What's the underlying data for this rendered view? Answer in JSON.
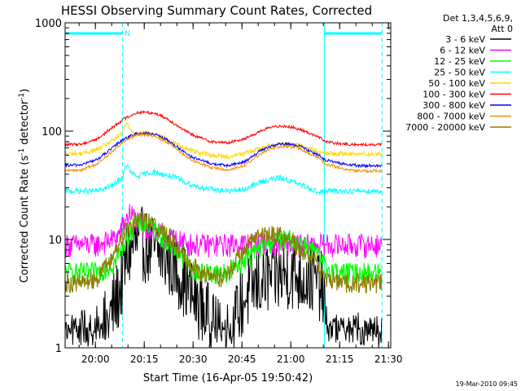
{
  "chart_data": {
    "type": "line",
    "title": "HESSI Observing Summary Count Rates, Corrected",
    "xlabel": "Start Time (16-Apr-05 19:50:42)",
    "ylabel_main": "Corrected Count Rate (s",
    "ylabel_sup1": "-1",
    "ylabel_mid": " detector",
    "ylabel_sup2": "-1",
    "ylabel_end": ")",
    "y_scale": "log",
    "ylim": [
      1,
      1000
    ],
    "xlim_minutes": [
      0,
      100
    ],
    "x_ticks": [
      {
        "minute": 9.3,
        "label": "20:00"
      },
      {
        "minute": 24.3,
        "label": "20:15"
      },
      {
        "minute": 39.3,
        "label": "20:30"
      },
      {
        "minute": 54.3,
        "label": "20:45"
      },
      {
        "minute": 69.3,
        "label": "21:00"
      },
      {
        "minute": 84.3,
        "label": "21:15"
      },
      {
        "minute": 99.3,
        "label": "21:30"
      }
    ],
    "y_ticks": [
      {
        "value": 1,
        "label": "1"
      },
      {
        "value": 10,
        "label": "10"
      },
      {
        "value": 100,
        "label": "100"
      },
      {
        "value": 1000,
        "label": "1000"
      }
    ],
    "legend_header": [
      "Det 1,3,4,5,6,9,",
      "Att 0"
    ],
    "legend_position": "right",
    "flag_label": "N",
    "flag_intervals": [
      [
        0,
        17.6
      ],
      [
        79.6,
        97.3
      ]
    ],
    "flag_lines": [
      17.6,
      79.6,
      97.3
    ],
    "series": [
      {
        "name": "3 - 6 keV",
        "color": "#000000",
        "x": [
          0,
          5,
          10,
          14,
          17,
          19,
          21,
          24,
          27,
          30,
          33,
          36,
          39,
          42,
          45,
          48,
          51,
          54,
          57,
          60,
          63,
          66,
          69,
          72,
          75,
          78,
          79.6,
          80,
          85,
          90,
          95,
          97.3
        ],
        "y": [
          1,
          1,
          1.1,
          2,
          3.5,
          7,
          9,
          9,
          8,
          7,
          6,
          4.5,
          3,
          2.5,
          1.5,
          1.2,
          1.3,
          2.5,
          3.5,
          4,
          4.5,
          4.5,
          5,
          4.5,
          4.5,
          4,
          3,
          1.1,
          1,
          1,
          1,
          1
        ]
      },
      {
        "name": "6 - 12 keV",
        "color": "#ff00ff",
        "x": [
          0,
          10,
          16,
          18,
          20,
          22,
          24,
          27,
          30,
          33,
          36,
          40,
          50,
          60,
          70,
          80,
          90,
          97.3
        ],
        "y": [
          9,
          9,
          10.5,
          14,
          18,
          15,
          13,
          12,
          11,
          10,
          9.5,
          9,
          9,
          9.5,
          9,
          9,
          9,
          9
        ]
      },
      {
        "name": "12 - 25 keV",
        "color": "#00ff00",
        "x": [
          0,
          10,
          15,
          18,
          20,
          22,
          24,
          26,
          28,
          31,
          34,
          37,
          40,
          45,
          50,
          55,
          60,
          63,
          66,
          69,
          72,
          75,
          78,
          80,
          85,
          90,
          97.3
        ],
        "y": [
          5,
          5,
          6,
          9,
          12,
          14,
          14,
          13,
          12,
          10,
          8,
          6.5,
          5,
          5,
          5,
          6.5,
          8.5,
          9.5,
          10,
          10,
          9.5,
          8.5,
          7,
          5.5,
          5,
          5,
          5
        ]
      },
      {
        "name": "25 - 50 keV",
        "color": "#00ffff",
        "x": [
          0,
          10,
          15,
          17.6,
          19,
          20,
          22,
          24,
          27,
          30,
          33,
          36,
          40,
          45,
          50,
          55,
          60,
          63,
          66,
          69,
          72,
          75,
          78,
          80,
          82,
          85,
          90,
          97.3
        ],
        "y": [
          28,
          28,
          32,
          38,
          50,
          42,
          38,
          40,
          42,
          40,
          38,
          35,
          31,
          29,
          28,
          29,
          34,
          36,
          37,
          35,
          32,
          30,
          27,
          28,
          28,
          28,
          28,
          28
        ]
      },
      {
        "name": "50 - 100 keV",
        "color": "#ffd700",
        "x": [
          0,
          5,
          10,
          14,
          17,
          19,
          21,
          24,
          27,
          30,
          33,
          36,
          40,
          45,
          50,
          55,
          60,
          63,
          66,
          69,
          72,
          75,
          78,
          80,
          85,
          90,
          97.3
        ],
        "y": [
          62,
          62,
          68,
          80,
          92,
          118,
          95,
          97,
          94,
          88,
          80,
          72,
          65,
          60,
          58,
          62,
          70,
          74,
          76,
          76,
          74,
          70,
          64,
          62,
          62,
          62,
          62
        ]
      },
      {
        "name": "100 - 300 keV",
        "color": "#ff0000",
        "x": [
          0,
          5,
          10,
          14,
          18,
          22,
          25,
          28,
          31,
          34,
          37,
          40,
          45,
          50,
          55,
          60,
          63,
          66,
          69,
          72,
          75,
          78,
          80,
          85,
          90,
          97.3
        ],
        "y": [
          75,
          76,
          85,
          105,
          130,
          148,
          150,
          145,
          132,
          115,
          100,
          90,
          80,
          78,
          85,
          100,
          108,
          112,
          110,
          104,
          96,
          88,
          80,
          76,
          75,
          75
        ]
      },
      {
        "name": "300 - 800 keV",
        "color": "#0000ff",
        "x": [
          0,
          5,
          10,
          14,
          18,
          22,
          25,
          28,
          31,
          34,
          37,
          40,
          45,
          50,
          55,
          60,
          63,
          66,
          69,
          72,
          75,
          78,
          80,
          85,
          90,
          97.3
        ],
        "y": [
          48,
          49,
          55,
          68,
          85,
          95,
          96,
          92,
          84,
          73,
          63,
          56,
          50,
          48,
          52,
          66,
          72,
          76,
          76,
          73,
          66,
          60,
          54,
          50,
          48,
          48
        ]
      },
      {
        "name": "800 - 7000 keV",
        "color": "#ff8c00",
        "x": [
          0,
          5,
          10,
          14,
          18,
          22,
          25,
          28,
          31,
          34,
          37,
          40,
          45,
          50,
          55,
          60,
          63,
          66,
          69,
          72,
          75,
          78,
          80,
          85,
          90,
          97.3
        ],
        "y": [
          43,
          44,
          50,
          63,
          80,
          92,
          93,
          88,
          80,
          69,
          59,
          52,
          46,
          44,
          48,
          62,
          68,
          72,
          72,
          69,
          62,
          56,
          50,
          45,
          43,
          43
        ]
      },
      {
        "name": "7000 - 20000 keV",
        "color": "#8b8000",
        "x": [
          0,
          5,
          10,
          14,
          17,
          20,
          23,
          25,
          27,
          30,
          33,
          36,
          39,
          42,
          45,
          48,
          51,
          54,
          57,
          60,
          63,
          66,
          69,
          72,
          75,
          78,
          80,
          85,
          90,
          97.3
        ],
        "y": [
          4,
          4,
          4.5,
          6.5,
          10,
          14,
          16,
          15.5,
          14,
          12,
          9.5,
          7.5,
          6,
          5,
          4.5,
          4.5,
          5.5,
          7.5,
          9.5,
          11,
          11.5,
          11,
          10,
          8.5,
          7,
          5.5,
          4.5,
          4,
          4,
          4
        ]
      }
    ]
  },
  "timestamp": "19-Mar-2010 09:45"
}
